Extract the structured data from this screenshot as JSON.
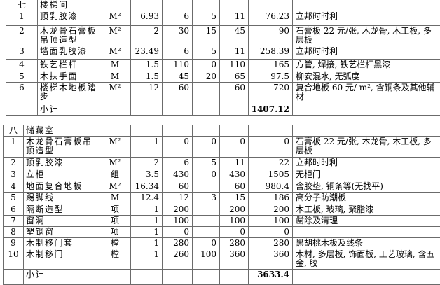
{
  "sections": [
    {
      "id_label": "七",
      "title": "楼梯间",
      "rows": [
        {
          "no": "1",
          "name": "顶乳胶漆",
          "unit": "M²",
          "qty": "6.93",
          "p1": "6",
          "p2": "5",
          "p3": "11",
          "amount": "76.23",
          "remark": "立邦时时利"
        },
        {
          "no": "2",
          "name": "木龙骨石膏板吊顶造型",
          "unit": "M²",
          "qty": "2",
          "p1": "30",
          "p2": "15",
          "p3": "45",
          "amount": "90",
          "remark": "石膏板 22 元/张, 木龙骨, 木工板, 多层板"
        },
        {
          "no": "3",
          "name": "墙面乳胶漆",
          "unit": "M²",
          "qty": "23.49",
          "p1": "6",
          "p2": "5",
          "p3": "11",
          "amount": "258.39",
          "remark": "立邦时时利"
        },
        {
          "no": "4",
          "name": "铁艺栏杆",
          "unit": "M",
          "qty": "1.5",
          "p1": "110",
          "p2": "0",
          "p3": "110",
          "amount": "165",
          "remark": "方管, 焊接, 铁艺栏杆黑漆"
        },
        {
          "no": "5",
          "name": "木扶手面",
          "unit": "M",
          "qty": "1.5",
          "p1": "45",
          "p2": "20",
          "p3": "65",
          "amount": "97.5",
          "remark": "柳安混水, 无弧度"
        },
        {
          "no": "6",
          "name": "楼梯木地板踏步",
          "unit": "M²",
          "qty": "12",
          "p1": "60",
          "p2": "",
          "p3": "60",
          "amount": "720",
          "remark": "复合地板 60 元/ m², 含铜条及其他辅材"
        }
      ],
      "subtotal_label": "小计",
      "subtotal": "1407.12"
    },
    {
      "id_label": "八",
      "title": "储藏室",
      "rows": [
        {
          "no": "1",
          "name": "木龙骨石膏板吊顶造型",
          "unit": "M²",
          "qty": "1",
          "p1": "0",
          "p2": "0",
          "p3": "0",
          "amount": "0",
          "remark": "石膏板 22 元/张, 木龙骨, 木工板, 多层板"
        },
        {
          "no": "2",
          "name": "顶乳胶漆",
          "unit": "M²",
          "qty": "2",
          "p1": "6",
          "p2": "5",
          "p3": "11",
          "amount": "22",
          "remark": "立邦时时利"
        },
        {
          "no": "3",
          "name": "立柜",
          "unit": "组",
          "qty": "3.5",
          "p1": "430",
          "p2": "0",
          "p3": "430",
          "amount": "1505",
          "remark": "无柜门"
        },
        {
          "no": "4",
          "name": "地面复合地板",
          "unit": "M²",
          "qty": "16.34",
          "p1": "60",
          "p2": "",
          "p3": "60",
          "amount": "980.4",
          "remark": "含胶垫, 铜条等(无找平)"
        },
        {
          "no": "5",
          "name": "踢脚线",
          "unit": "M",
          "qty": "12.4",
          "p1": "12",
          "p2": "3",
          "p3": "15",
          "amount": "186",
          "remark": "高分子防潮板"
        },
        {
          "no": "6",
          "name": "隔断造型",
          "unit": "项",
          "qty": "1",
          "p1": "200",
          "p2": "",
          "p3": "200",
          "amount": "200",
          "remark": "木工板, 玻璃, 聚脂漆"
        },
        {
          "no": "7",
          "name": "窗洞",
          "unit": "项",
          "qty": "1",
          "p1": "100",
          "p2": "",
          "p3": "100",
          "amount": "100",
          "remark": "凿除及清理"
        },
        {
          "no": "8",
          "name": "塑钢窗",
          "unit": "项",
          "qty": "1",
          "p1": "0",
          "p2": "",
          "p3": "0",
          "amount": "0",
          "remark": ""
        },
        {
          "no": "9",
          "name": "木制移门套",
          "unit": "樘",
          "qty": "1",
          "p1": "280",
          "p2": "0",
          "p3": "280",
          "amount": "280",
          "remark": "黑胡桃木板及线条"
        },
        {
          "no": "10",
          "name": "木制移门",
          "unit": "樘",
          "qty": "1",
          "p1": "260",
          "p2": "100",
          "p3": "360",
          "amount": "360",
          "remark": "木材, 多层板, 饰面板, 工艺玻璃, 含五金, 胶"
        }
      ],
      "subtotal_label": "小计",
      "subtotal": "3633.4"
    }
  ]
}
